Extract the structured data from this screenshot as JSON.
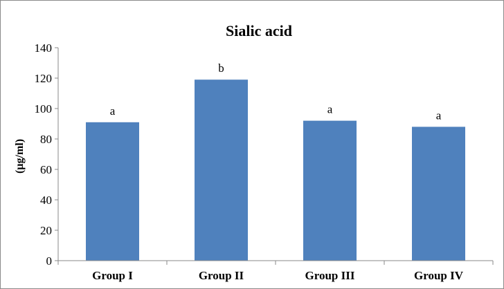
{
  "chart_data": {
    "type": "bar",
    "title": "Sialic acid",
    "xlabel": "",
    "ylabel": "(µg/ml)",
    "ylim": [
      0,
      140
    ],
    "yticks": [
      0,
      20,
      40,
      60,
      80,
      100,
      120,
      140
    ],
    "categories": [
      "Group I",
      "Group II",
      "Group III",
      "Group IV"
    ],
    "values": [
      91,
      119,
      92,
      88
    ],
    "data_labels": [
      "a",
      "b",
      "a",
      "a"
    ],
    "bar_color": "#4f81bd",
    "grid": false,
    "legend": "none"
  }
}
